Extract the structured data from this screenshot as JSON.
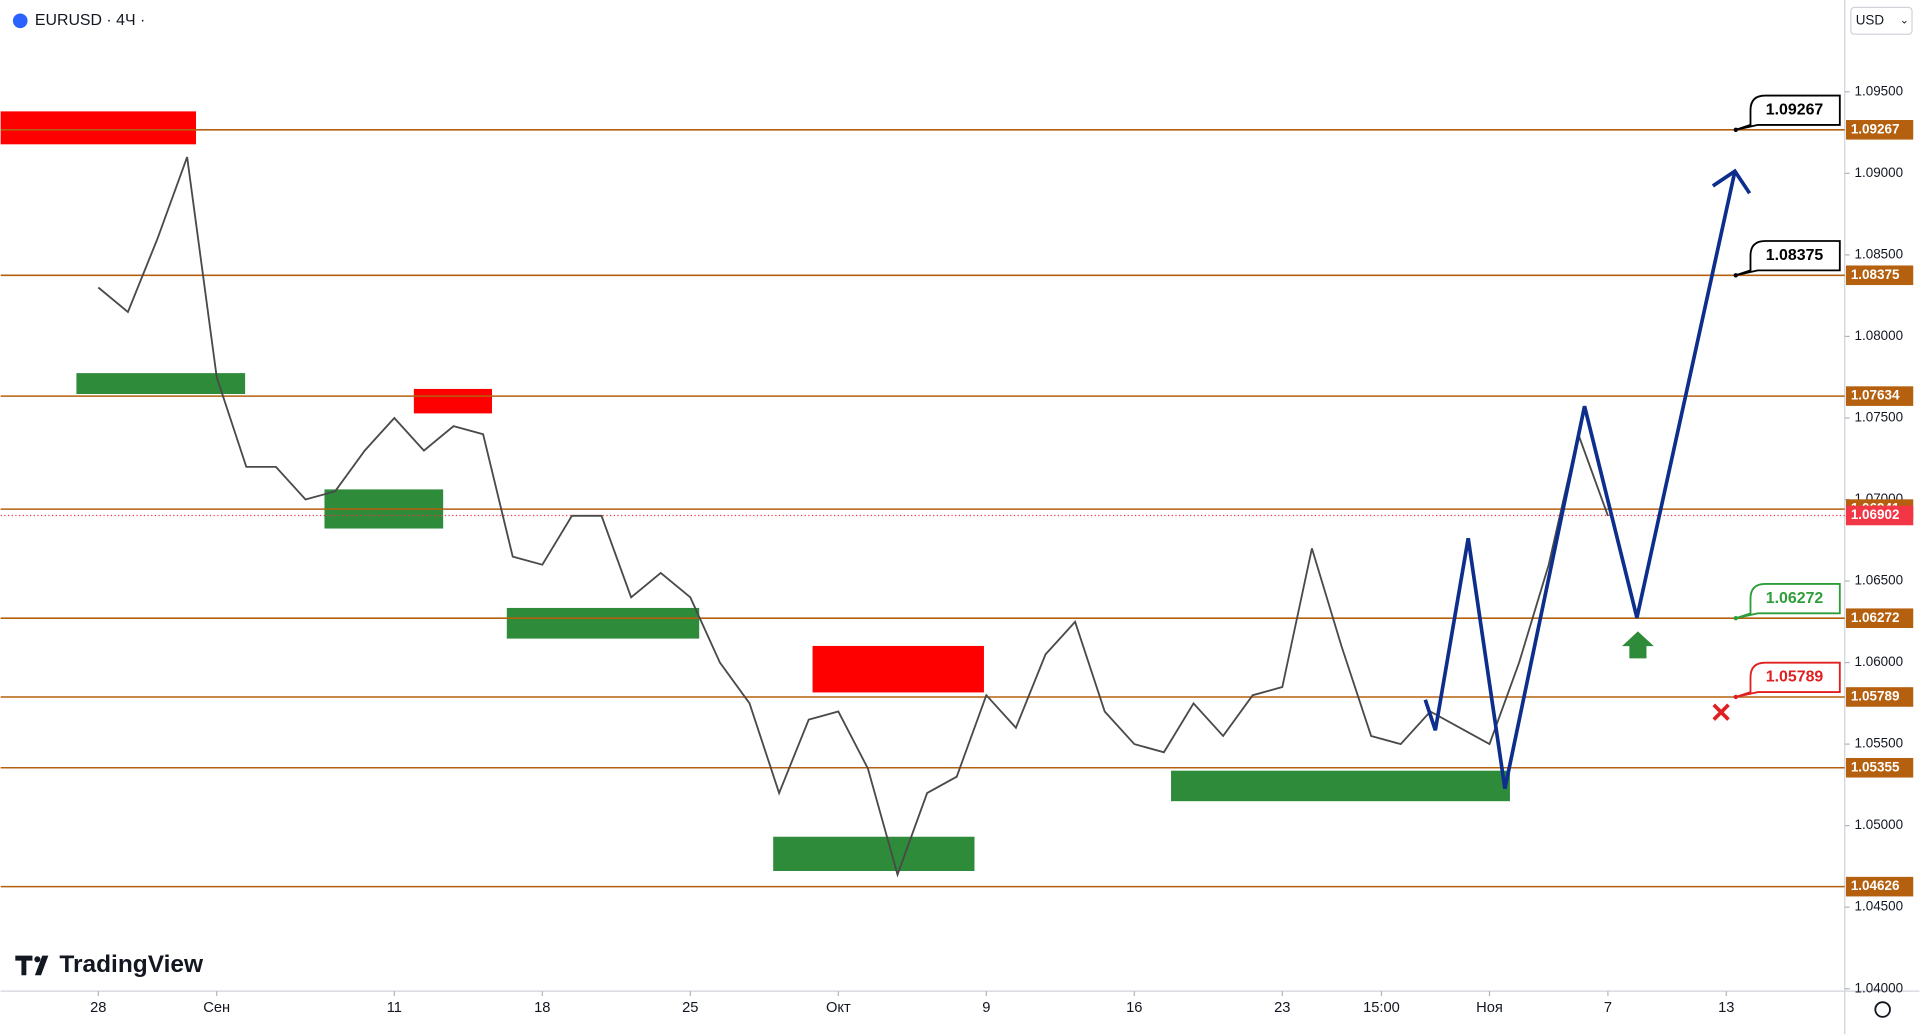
{
  "chart_data": {
    "type": "line",
    "title": "EURUSD · 4Ч ·",
    "currency": "USD",
    "brand": "TradingView",
    "x": [
      0,
      1,
      2,
      3,
      4,
      5,
      6,
      7,
      8,
      9,
      10,
      11,
      12,
      13,
      14,
      15,
      16,
      17,
      18,
      19,
      20,
      21,
      22,
      23,
      24,
      25,
      26,
      27,
      28,
      29,
      30,
      31,
      32,
      33,
      34,
      35,
      36,
      37,
      38,
      39,
      40,
      41,
      42,
      43,
      44,
      45,
      46,
      47,
      48,
      49,
      50,
      51
    ],
    "series": [
      {
        "name": "EURUSD",
        "color": "#4a4a4a",
        "values": [
          1.083,
          1.0815,
          1.086,
          1.091,
          1.0775,
          1.072,
          1.072,
          1.07,
          1.0705,
          1.073,
          1.075,
          1.073,
          1.0745,
          1.074,
          1.0665,
          1.066,
          1.069,
          1.069,
          1.064,
          1.0655,
          1.064,
          1.06,
          1.0575,
          1.052,
          1.0565,
          1.057,
          1.0535,
          1.047,
          1.052,
          1.053,
          1.058,
          1.056,
          1.0605,
          1.0625,
          1.057,
          1.055,
          1.0545,
          1.0575,
          1.0555,
          1.058,
          1.0585,
          1.067,
          1.061,
          1.0555,
          1.055,
          1.057,
          1.056,
          1.055,
          1.06,
          1.066,
          1.074,
          1.069
        ]
      }
    ],
    "xlim": [
      -3.3,
      59
    ],
    "xticks": [
      {
        "value": 0,
        "label": "28"
      },
      {
        "value": 4,
        "label": "Сен"
      },
      {
        "value": 10,
        "label": "11"
      },
      {
        "value": 15,
        "label": "18"
      },
      {
        "value": 20,
        "label": "25"
      },
      {
        "value": 25,
        "label": "Окт"
      },
      {
        "value": 30,
        "label": "9"
      },
      {
        "value": 35,
        "label": "16"
      },
      {
        "value": 40,
        "label": "23"
      },
      {
        "value": 43.35,
        "label": "15:00"
      },
      {
        "value": 47,
        "label": "Ноя"
      },
      {
        "value": 51,
        "label": "7"
      },
      {
        "value": 55,
        "label": "13"
      }
    ],
    "ylim": [
      1.04,
      1.10063
    ],
    "yticks": [
      {
        "value": 1.095,
        "label": "1.09500"
      },
      {
        "value": 1.09,
        "label": "1.09000"
      },
      {
        "value": 1.085,
        "label": "1.08500"
      },
      {
        "value": 1.08,
        "label": "1.08000"
      },
      {
        "value": 1.075,
        "label": "1.07500"
      },
      {
        "value": 1.07,
        "label": "1.07000"
      },
      {
        "value": 1.065,
        "label": "1.06500"
      },
      {
        "value": 1.06,
        "label": "1.06000"
      },
      {
        "value": 1.055,
        "label": "1.05500"
      },
      {
        "value": 1.05,
        "label": "1.05000"
      },
      {
        "value": 1.045,
        "label": "1.04500"
      },
      {
        "value": 1.04,
        "label": "1.04000"
      }
    ],
    "levels": [
      1.09267,
      1.08375,
      1.07634,
      1.06941,
      1.06272,
      1.05789,
      1.05355,
      1.04626
    ],
    "level_color": "#b5600f",
    "last_price": 1.06902,
    "last_price_color": "#f23645",
    "callouts": [
      {
        "value": 1.09267,
        "color": "#000000"
      },
      {
        "value": 1.08375,
        "color": "#000000"
      },
      {
        "value": 1.06272,
        "color": "#2e9e3a"
      },
      {
        "value": 1.05789,
        "color": "#e02020"
      }
    ],
    "zones": [
      {
        "x0": -3.3,
        "x1": 3.3,
        "low": 1.09178,
        "high": 1.0938,
        "color": "#ff0000"
      },
      {
        "x0": -0.74,
        "x1": 4.96,
        "low": 1.07647,
        "high": 1.07775,
        "color": "#2e8b3a"
      },
      {
        "x0": 10.66,
        "x1": 13.3,
        "low": 1.07528,
        "high": 1.07678,
        "color": "#ff0000"
      },
      {
        "x0": 7.64,
        "x1": 11.65,
        "low": 1.06822,
        "high": 1.07062,
        "color": "#2e8b3a"
      },
      {
        "x0": 13.8,
        "x1": 20.3,
        "low": 1.06147,
        "high": 1.06335,
        "color": "#2e8b3a"
      },
      {
        "x0": 24.13,
        "x1": 29.92,
        "low": 1.05817,
        "high": 1.06102,
        "color": "#ff0000"
      },
      {
        "x0": 22.8,
        "x1": 29.6,
        "low": 1.04722,
        "high": 1.04932,
        "color": "#2e8b3a"
      },
      {
        "x0": 36.24,
        "x1": 47.69,
        "low": 1.0515,
        "high": 1.05337,
        "color": "#2e8b3a"
      }
    ],
    "projection": {
      "color": "#0d2e8c",
      "x": [
        44.83,
        45.17,
        46.28,
        47.52,
        50.21,
        51.98,
        55.29
      ],
      "values": [
        1.05772,
        1.05585,
        1.06762,
        1.05227,
        1.07572,
        1.06275,
        1.09013
      ]
    }
  }
}
